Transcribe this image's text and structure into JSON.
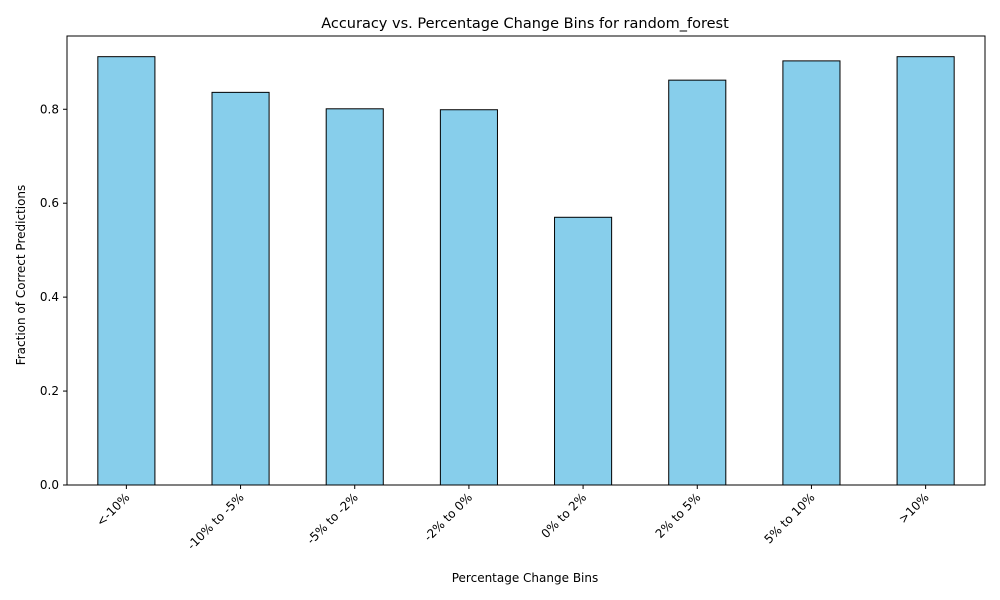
{
  "chart_data": {
    "type": "bar",
    "title": "Accuracy vs. Percentage Change Bins for random_forest",
    "xlabel": "Percentage Change Bins",
    "ylabel": "Fraction of Correct Predictions",
    "categories": [
      "<-10%",
      "-10% to -5%",
      "-5% to -2%",
      "-2% to 0%",
      "0% to 2%",
      "2% to 5%",
      "5% to 10%",
      ">10%"
    ],
    "values": [
      0.912,
      0.836,
      0.801,
      0.799,
      0.57,
      0.862,
      0.903,
      0.912
    ],
    "ylim": [
      0,
      0.956
    ],
    "yticks": [
      0.0,
      0.2,
      0.4,
      0.6,
      0.8
    ],
    "ytick_labels": [
      "0.0",
      "0.2",
      "0.4",
      "0.6",
      "0.8"
    ],
    "grid": false,
    "legend": "none",
    "bar_color": "#87CEEB",
    "edge_color": "#000000"
  }
}
